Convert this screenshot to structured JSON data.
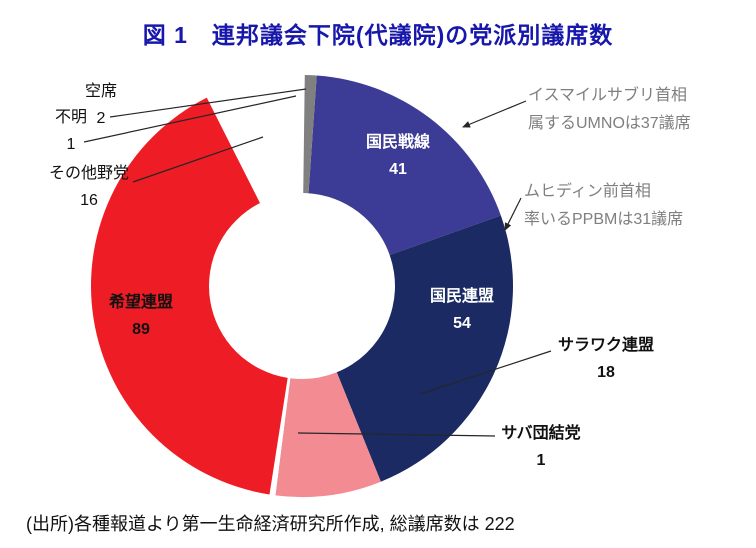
{
  "title": "図 1　連邦議会下院(代議院)の党派別議席数",
  "caption": "(出所)各種報道より第一生命経済研究所作成, 総議席数は 222",
  "colors": {
    "title_blue": "#1717ab",
    "annotation_gray": "#7f7f7f",
    "leader_line": "#262626",
    "background": "#ffffff"
  },
  "chart_data": {
    "type": "pie",
    "subtype": "donut",
    "title": "図 1　連邦議会下院(代議院)の党派別議席数",
    "total_seats": 222,
    "start_angle_deg": 4,
    "legend_position": "none",
    "segments": [
      {
        "name": "国民戦線",
        "value": 41,
        "color": "#3c3c96",
        "label_color": "#ffffff"
      },
      {
        "name": "国民連盟",
        "value": 54,
        "color": "#1b2a63",
        "label_color": "#ffffff"
      },
      {
        "name": "サラワク連盟",
        "value": 18,
        "color": "#f38b92",
        "label_color": "#111111"
      },
      {
        "name": "サバ団結党",
        "value": 1,
        "color": "#ffffff",
        "label_color": "#111111"
      },
      {
        "name": "希望連盟",
        "value": 89,
        "color": "#ee1c25",
        "label_color": "#111111"
      },
      {
        "name": "その他野党",
        "value": 16,
        "color": "#ffffff",
        "label_color": "#111111"
      },
      {
        "name": "不明",
        "value": 1,
        "color": "#ffffff",
        "label_color": "#111111"
      },
      {
        "name": "空席",
        "value": 2,
        "color": "#808080",
        "label_color": "#111111"
      }
    ],
    "annotations": [
      {
        "line1": "イスマイルサブリ首相",
        "line2": "属するUMNOは37議席",
        "target": "国民戦線"
      },
      {
        "line1": "ムヒディン前首相",
        "line2": "率いるPPBMは31議席",
        "target": "国民連盟"
      }
    ]
  }
}
